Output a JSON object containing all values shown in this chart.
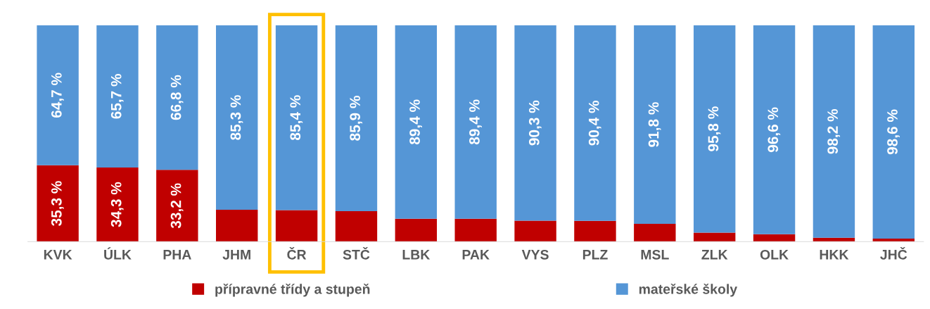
{
  "chart_data": {
    "type": "bar",
    "stacked": true,
    "categories": [
      "KVK",
      "ÚLK",
      "PHA",
      "JHM",
      "ČR",
      "STČ",
      "LBK",
      "PAK",
      "VYS",
      "PLZ",
      "MSL",
      "ZLK",
      "OLK",
      "HKK",
      "JHČ"
    ],
    "series": [
      {
        "name": "přípravné třídy a stupeň",
        "color": "#c00000",
        "values": [
          35.3,
          34.3,
          33.2,
          14.7,
          14.6,
          14.1,
          10.6,
          10.6,
          9.7,
          9.6,
          8.2,
          4.2,
          3.4,
          1.8,
          1.4
        ],
        "value_labels": [
          "35,3 %",
          "34,3 %",
          "33,2 %",
          null,
          null,
          null,
          null,
          null,
          null,
          null,
          null,
          null,
          null,
          null,
          null
        ]
      },
      {
        "name": "mateřské školy",
        "color": "#5596d6",
        "values": [
          64.7,
          65.7,
          66.8,
          85.3,
          85.4,
          85.9,
          89.4,
          89.4,
          90.3,
          90.4,
          91.8,
          95.8,
          96.6,
          98.2,
          98.6
        ],
        "value_labels": [
          "64,7 %",
          "65,7 %",
          "66,8 %",
          "85,3 %",
          "85,4 %",
          "85,9 %",
          "89,4 %",
          "89,4 %",
          "90,3 %",
          "90,4 %",
          "91,8 %",
          "95,8 %",
          "96,6 %",
          "98,2 %",
          "98,6 %"
        ]
      }
    ],
    "legend": "bottom",
    "grid": false
  }
}
